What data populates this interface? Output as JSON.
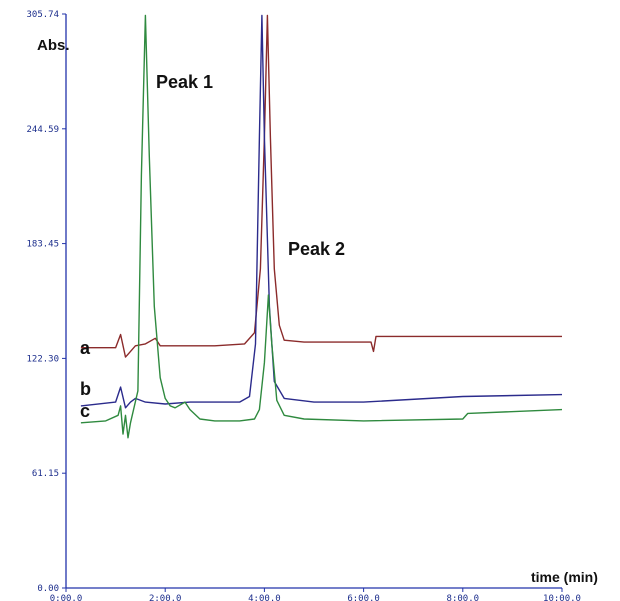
{
  "chart_data": {
    "type": "line",
    "title": "",
    "xlabel": "time (min)",
    "ylabel": "Abs.",
    "xlim": [
      0,
      10
    ],
    "ylim": [
      0,
      305.74
    ],
    "x_ticks": [
      0,
      2,
      4,
      6,
      8,
      10
    ],
    "x_tick_labels": [
      "0:00.0",
      "2:00.0",
      "4:00.0",
      "6:00.0",
      "8:00.0",
      "10:00.0"
    ],
    "y_ticks": [
      0,
      61.15,
      122.3,
      183.45,
      244.59,
      305.74
    ],
    "y_tick_labels": [
      "0.00",
      "61.15",
      "122.30",
      "183.45",
      "244.59",
      "305.74"
    ],
    "grid": false,
    "annotations": [
      {
        "text": "Peak 1",
        "x": 1.8,
        "y": 275
      },
      {
        "text": "Peak 2",
        "x": 4.4,
        "y": 178
      }
    ],
    "series": [
      {
        "name": "a",
        "color": "#8b2b2b",
        "points": [
          [
            0.3,
            128
          ],
          [
            1.0,
            128
          ],
          [
            1.1,
            135
          ],
          [
            1.2,
            123
          ],
          [
            1.3,
            126
          ],
          [
            1.4,
            129
          ],
          [
            1.6,
            130
          ],
          [
            1.8,
            133
          ],
          [
            1.9,
            129
          ],
          [
            2.2,
            129
          ],
          [
            3.0,
            129
          ],
          [
            3.6,
            130
          ],
          [
            3.8,
            136
          ],
          [
            3.92,
            170
          ],
          [
            4.0,
            240
          ],
          [
            4.06,
            305
          ],
          [
            4.12,
            240
          ],
          [
            4.2,
            170
          ],
          [
            4.3,
            140
          ],
          [
            4.4,
            132
          ],
          [
            4.8,
            131
          ],
          [
            5.5,
            131
          ],
          [
            6.0,
            131
          ],
          [
            6.15,
            131
          ],
          [
            6.2,
            126
          ],
          [
            6.25,
            134
          ],
          [
            6.5,
            134
          ],
          [
            8.0,
            134
          ],
          [
            10.0,
            134
          ]
        ]
      },
      {
        "name": "b",
        "color": "#2b2b8c",
        "points": [
          [
            0.3,
            97
          ],
          [
            1.0,
            99
          ],
          [
            1.1,
            107
          ],
          [
            1.2,
            96
          ],
          [
            1.3,
            99
          ],
          [
            1.4,
            101
          ],
          [
            1.6,
            99
          ],
          [
            2.0,
            98
          ],
          [
            2.5,
            99
          ],
          [
            3.0,
            99
          ],
          [
            3.5,
            99
          ],
          [
            3.7,
            102
          ],
          [
            3.82,
            130
          ],
          [
            3.9,
            240
          ],
          [
            3.95,
            305
          ],
          [
            4.0,
            240
          ],
          [
            4.1,
            150
          ],
          [
            4.2,
            110
          ],
          [
            4.4,
            101
          ],
          [
            5.0,
            99
          ],
          [
            6.0,
            99
          ],
          [
            8.0,
            102
          ],
          [
            10.0,
            103
          ]
        ]
      },
      {
        "name": "c",
        "color": "#2f8a3f",
        "points": [
          [
            0.3,
            88
          ],
          [
            0.8,
            89
          ],
          [
            1.05,
            92
          ],
          [
            1.1,
            97
          ],
          [
            1.15,
            82
          ],
          [
            1.2,
            92
          ],
          [
            1.25,
            80
          ],
          [
            1.3,
            88
          ],
          [
            1.45,
            105
          ],
          [
            1.52,
            220
          ],
          [
            1.6,
            305
          ],
          [
            1.68,
            230
          ],
          [
            1.78,
            150
          ],
          [
            1.9,
            112
          ],
          [
            2.0,
            101
          ],
          [
            2.1,
            97
          ],
          [
            2.2,
            96
          ],
          [
            2.4,
            99
          ],
          [
            2.5,
            95
          ],
          [
            2.7,
            90
          ],
          [
            3.0,
            89
          ],
          [
            3.5,
            89
          ],
          [
            3.8,
            90
          ],
          [
            3.9,
            95
          ],
          [
            4.0,
            120
          ],
          [
            4.08,
            156
          ],
          [
            4.15,
            130
          ],
          [
            4.25,
            100
          ],
          [
            4.4,
            92
          ],
          [
            4.8,
            90
          ],
          [
            6.0,
            89
          ],
          [
            8.0,
            90
          ],
          [
            8.1,
            93
          ],
          [
            10.0,
            95
          ]
        ]
      }
    ]
  }
}
